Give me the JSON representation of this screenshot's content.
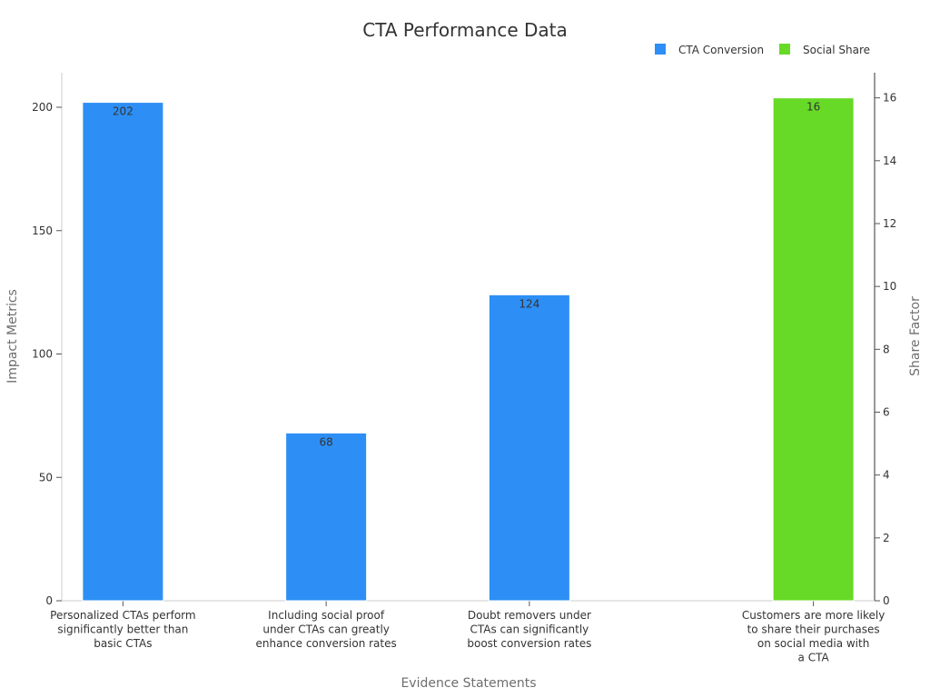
{
  "chart_data": {
    "type": "bar",
    "title": "CTA Performance Data",
    "xlabel": "Evidence Statements",
    "ylabel": "Impact Metrics",
    "y2label": "Share Factor",
    "categories": [
      [
        "Personalized CTAs perform",
        "significantly better than",
        "basic CTAs"
      ],
      [
        "Including social proof",
        "under CTAs can greatly",
        "enhance conversion rates"
      ],
      [
        "Doubt removers under",
        "CTAs can significantly",
        "boost conversion rates"
      ],
      [
        "Customers are more likely",
        "to share their purchases",
        "on social media with",
        "a CTA"
      ]
    ],
    "series": [
      {
        "name": "CTA Conversion",
        "axis": "left",
        "color": "#2d8ff5",
        "values": [
          202,
          68,
          124,
          null
        ],
        "labels": [
          "202",
          "68",
          "124",
          null
        ]
      },
      {
        "name": "Social Share",
        "axis": "right",
        "color": "#66da26",
        "values": [
          null,
          null,
          null,
          16
        ],
        "labels": [
          null,
          null,
          null,
          "16"
        ]
      }
    ],
    "ylim": [
      0,
      214
    ],
    "yticks": [
      0,
      50,
      100,
      150,
      200
    ],
    "y2lim": [
      0,
      16.8
    ],
    "y2ticks": [
      0,
      2,
      4,
      6,
      8,
      10,
      12,
      14,
      16
    ],
    "legend": {
      "position": "top-right",
      "entries": [
        "CTA Conversion",
        "Social Share"
      ]
    },
    "grid": false
  }
}
